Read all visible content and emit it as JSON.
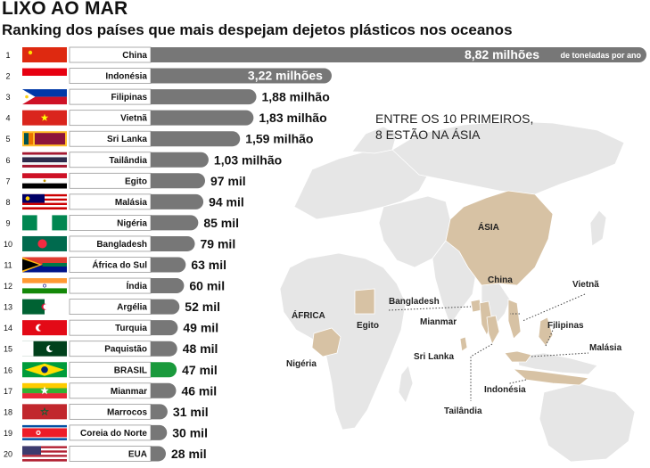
{
  "title": "LIXO AO MAR",
  "subtitle": "Ranking dos países que mais despejam dejetos plásticos nos oceanos",
  "unit_note": "de toneladas por ano",
  "callout": {
    "line1": "ENTRE OS 10 PRIMEIROS,",
    "line2": "8 ESTÃO NA ÁSIA"
  },
  "map_labels": {
    "asia": "ÁSIA",
    "africa": "ÁFRICA",
    "china": "China",
    "bangladesh": "Bangladesh",
    "mianmar": "Mianmar",
    "vietna": "Vietnã",
    "filipinas": "Filipinas",
    "malasia": "Malásia",
    "sri_lanka": "Sri Lanka",
    "indonesia": "Indonésia",
    "tailandia": "Tailândia",
    "egito": "Egito",
    "nigeria": "Nigéria"
  },
  "colors": {
    "bar": "#777777",
    "highlight": "#1a9a3c",
    "label_box_border": "#999999",
    "map_land": "#e6e6e6",
    "map_highlight": "#d7c2a4"
  },
  "chart_data": {
    "type": "bar",
    "orientation": "horizontal",
    "title": "LIXO AO MAR",
    "subtitle": "Ranking dos países que mais despejam dejetos plásticos nos oceanos",
    "unit": "toneladas por ano",
    "highlight": "BRASIL",
    "items": [
      {
        "rank": "1",
        "country": "China",
        "value": 8820000,
        "label": "8,82 milhões",
        "flag": "china"
      },
      {
        "rank": "2",
        "country": "Indonésia",
        "value": 3220000,
        "label": "3,22 milhões",
        "flag": "indonesia"
      },
      {
        "rank": "3",
        "country": "Filipinas",
        "value": 1880000,
        "label": "1,88 milhão",
        "flag": "philippines"
      },
      {
        "rank": "4",
        "country": "Vietnã",
        "value": 1830000,
        "label": "1,83 milhão",
        "flag": "vietnam"
      },
      {
        "rank": "5",
        "country": "Sri Lanka",
        "value": 1590000,
        "label": "1,59 milhão",
        "flag": "sri-lanka"
      },
      {
        "rank": "6",
        "country": "Tailândia",
        "value": 1030000,
        "label": "1,03 milhão",
        "flag": "thailand"
      },
      {
        "rank": "7",
        "country": "Egito",
        "value": 97000,
        "label": "97 mil",
        "flag": "egypt"
      },
      {
        "rank": "8",
        "country": "Malásia",
        "value": 94000,
        "label": "94 mil",
        "flag": "malaysia"
      },
      {
        "rank": "9",
        "country": "Nigéria",
        "value": 85000,
        "label": "85 mil",
        "flag": "nigeria"
      },
      {
        "rank": "10",
        "country": "Bangladesh",
        "value": 79000,
        "label": "79 mil",
        "flag": "bangladesh"
      },
      {
        "rank": "11",
        "country": "África do Sul",
        "value": 63000,
        "label": "63 mil",
        "flag": "south-africa"
      },
      {
        "rank": "12",
        "country": "Índia",
        "value": 60000,
        "label": "60 mil",
        "flag": "india"
      },
      {
        "rank": "13",
        "country": "Argélia",
        "value": 52000,
        "label": "52 mil",
        "flag": "algeria"
      },
      {
        "rank": "14",
        "country": "Turquia",
        "value": 49000,
        "label": "49 mil",
        "flag": "turkey"
      },
      {
        "rank": "15",
        "country": "Paquistão",
        "value": 48000,
        "label": "48 mil",
        "flag": "pakistan"
      },
      {
        "rank": "16",
        "country": "BRASIL",
        "value": 47000,
        "label": "47 mil",
        "flag": "brazil"
      },
      {
        "rank": "17",
        "country": "Mianmar",
        "value": 46000,
        "label": "46 mil",
        "flag": "myanmar"
      },
      {
        "rank": "18",
        "country": "Marrocos",
        "value": 31000,
        "label": "31 mil",
        "flag": "morocco"
      },
      {
        "rank": "19",
        "country": "Coreia do Norte",
        "value": 30000,
        "label": "30 mil",
        "flag": "north-korea"
      },
      {
        "rank": "20",
        "country": "EUA",
        "value": 28000,
        "label": "28 mil",
        "flag": "usa"
      }
    ]
  }
}
